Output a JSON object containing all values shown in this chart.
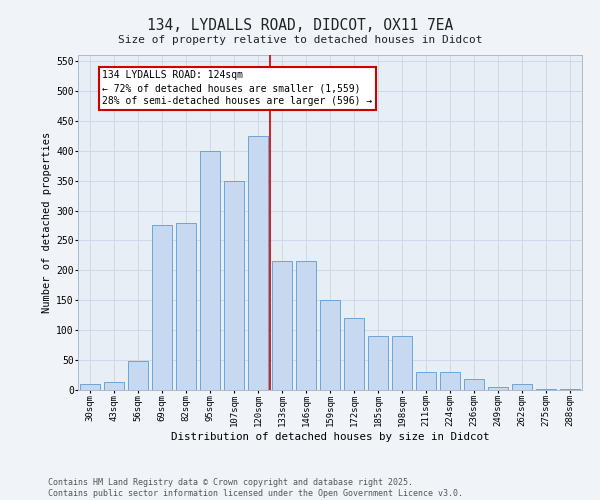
{
  "title": "134, LYDALLS ROAD, DIDCOT, OX11 7EA",
  "subtitle": "Size of property relative to detached houses in Didcot",
  "xlabel": "Distribution of detached houses by size in Didcot",
  "ylabel": "Number of detached properties",
  "categories": [
    "30sqm",
    "43sqm",
    "56sqm",
    "69sqm",
    "82sqm",
    "95sqm",
    "107sqm",
    "120sqm",
    "133sqm",
    "146sqm",
    "159sqm",
    "172sqm",
    "185sqm",
    "198sqm",
    "211sqm",
    "224sqm",
    "236sqm",
    "249sqm",
    "262sqm",
    "275sqm",
    "288sqm"
  ],
  "values": [
    10,
    13,
    48,
    275,
    280,
    400,
    350,
    425,
    215,
    215,
    150,
    120,
    90,
    90,
    30,
    30,
    18,
    5,
    10,
    2,
    1
  ],
  "bar_color": "#c6d9f0",
  "bar_edge_color": "#5b9bd5",
  "property_line_x": 7.5,
  "annotation_text": "134 LYDALLS ROAD: 124sqm\n← 72% of detached houses are smaller (1,559)\n28% of semi-detached houses are larger (596) →",
  "annotation_box_color": "#ffffff",
  "annotation_box_edge_color": "#cc0000",
  "vline_color": "#cc0000",
  "grid_color": "#cdd8e8",
  "bg_color": "#e8eef5",
  "fig_bg_color": "#f0f4f8",
  "footer_text": "Contains HM Land Registry data © Crown copyright and database right 2025.\nContains public sector information licensed under the Open Government Licence v3.0.",
  "ylim": [
    0,
    560
  ],
  "yticks": [
    0,
    50,
    100,
    150,
    200,
    250,
    300,
    350,
    400,
    450,
    500,
    550
  ]
}
